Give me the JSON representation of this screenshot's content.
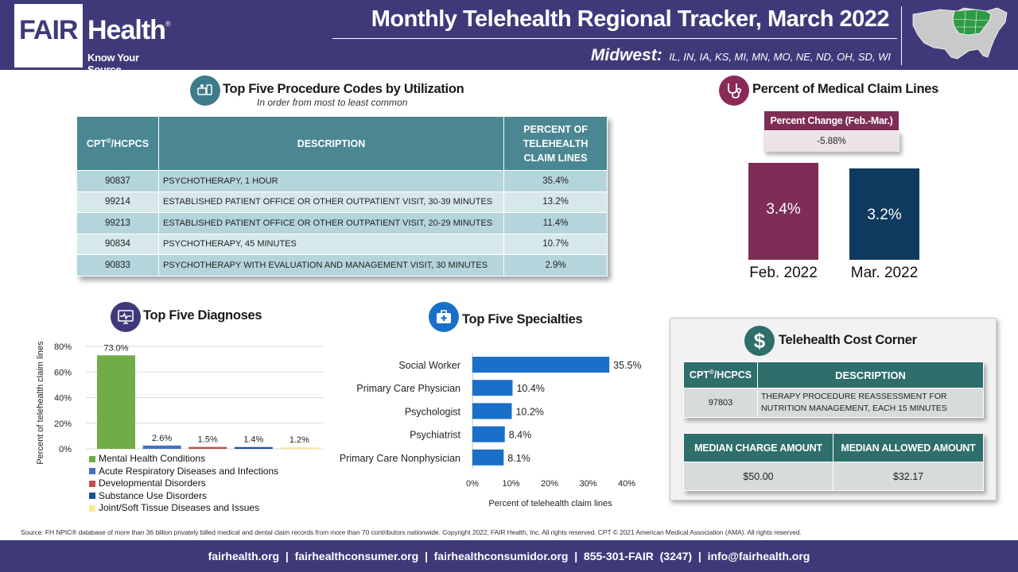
{
  "header": {
    "logo_fair": "FAIR",
    "logo_health": "Health",
    "logo_reg": "®",
    "logo_tagline": "Know Your Source",
    "title": "Monthly Telehealth Regional Tracker, March 2022",
    "region_name": "Midwest:",
    "region_states": "IL, IN, IA, KS, MI, MN, MO, NE, ND, OH, SD, WI"
  },
  "procedures": {
    "title": "Top Five Procedure Codes by Utilization",
    "subtitle": "In order from most to least common",
    "col_code": "CPT",
    "col_code_sup": "®",
    "col_code_suffix": "/HCPCS",
    "col_desc": "DESCRIPTION",
    "col_pct_1": "PERCENT OF",
    "col_pct_2": "TELEHEALTH",
    "col_pct_3": "CLAIM LINES",
    "rows": [
      {
        "code": "90837",
        "desc": "PSYCHOTHERAPY, 1 HOUR",
        "pct": "35.4%"
      },
      {
        "code": "99214",
        "desc": "ESTABLISHED PATIENT OFFICE OR OTHER OUTPATIENT VISIT, 30-39 MINUTES",
        "pct": "13.2%"
      },
      {
        "code": "99213",
        "desc": "ESTABLISHED PATIENT OFFICE OR OTHER OUTPATIENT VISIT, 20-29 MINUTES",
        "pct": "11.4%"
      },
      {
        "code": "90834",
        "desc": "PSYCHOTHERAPY, 45 MINUTES",
        "pct": "10.7%"
      },
      {
        "code": "90833",
        "desc": "PSYCHOTHERAPY WITH EVALUATION AND MANAGEMENT VISIT, 30 MINUTES",
        "pct": "2.9%"
      }
    ]
  },
  "claim_lines": {
    "title": "Percent of Medical Claim Lines",
    "change_label": "Percent Change (Feb.-Mar.)",
    "change_value": "-5.88%"
  },
  "cost_corner": {
    "title": "Telehealth Cost Corner",
    "col_code": "CPT",
    "col_code_sup": "®",
    "col_code_suffix": "/HCPCS",
    "col_desc": "DESCRIPTION",
    "code": "97803",
    "desc_line1": "THERAPY PROCEDURE REASSESSMENT FOR",
    "desc_line2": "NUTRITION MANAGEMENT, EACH 15 MINUTES",
    "median_charge_label": "MEDIAN CHARGE AMOUNT",
    "median_allowed_label": "MEDIAN ALLOWED AMOUNT",
    "median_charge": "$50.00",
    "median_allowed": "$32.17"
  },
  "source": "Source: FH NPIC® database of more than 36 billion privately billed medical and dental claim records from more than 70 contributors nationwide. Copyright 2022, FAIR Health, Inc. All rights reserved. CPT © 2021 American Medical Association (AMA). All rights reserved.",
  "footer": {
    "links": "fairhealth.org  |  fairhealthconsumer.org  |  fairhealthconsumidor.org  |  855-301-FAIR  (3247)  |  info@fairhealth.org"
  },
  "colors": {
    "header_bg": "#3e3a7a",
    "table_teal": "#4a8793",
    "feb_bar": "#7d2d56",
    "mar_bar": "#0f3a5f",
    "diag_green": "#70ad47",
    "diag_blue": "#4472c4",
    "diag_red": "#c0504d",
    "diag_navy": "#1f4e99",
    "diag_yellow": "#ffe699",
    "spec_blue": "#1a6fc8",
    "cost_teal": "#2e6e6b"
  },
  "chart_data": [
    {
      "type": "bar",
      "title": "Percent of Medical Claim Lines",
      "categories": [
        "Feb. 2022",
        "Mar. 2022"
      ],
      "values": [
        3.4,
        3.2
      ],
      "value_labels": [
        "3.4%",
        "3.2%"
      ],
      "ylim": [
        0,
        3.5
      ]
    },
    {
      "type": "bar",
      "title": "Top Five Diagnoses",
      "ylabel": "Percent of telehealth claim lines",
      "ylim": [
        0,
        80
      ],
      "yticks": [
        "0%",
        "20%",
        "40%",
        "60%",
        "80%"
      ],
      "categories": [
        "Mental Health Conditions",
        "Acute Respiratory Diseases and Infections",
        "Developmental Disorders",
        "Substance Use Disorders",
        "Joint/Soft Tissue Diseases and Issues"
      ],
      "values": [
        73.0,
        2.6,
        1.5,
        1.4,
        1.2
      ],
      "value_labels": [
        "73.0%",
        "2.6%",
        "1.5%",
        "1.4%",
        "1.2%"
      ],
      "colors": [
        "#70ad47",
        "#4472c4",
        "#c0504d",
        "#1f4e99",
        "#ffe699"
      ],
      "legend": "bottom"
    },
    {
      "type": "bar",
      "orientation": "horizontal",
      "title": "Top Five Specialties",
      "xlabel": "Percent of telehealth claim lines",
      "xlim": [
        0,
        40
      ],
      "xticks": [
        "0%",
        "10%",
        "20%",
        "30%",
        "40%"
      ],
      "categories": [
        "Social Worker",
        "Primary Care Physician",
        "Psychologist",
        "Psychiatrist",
        "Primary Care Nonphysician"
      ],
      "values": [
        35.5,
        10.4,
        10.2,
        8.4,
        8.1
      ],
      "value_labels": [
        "35.5%",
        "10.4%",
        "10.2%",
        "8.4%",
        "8.1%"
      ]
    }
  ]
}
